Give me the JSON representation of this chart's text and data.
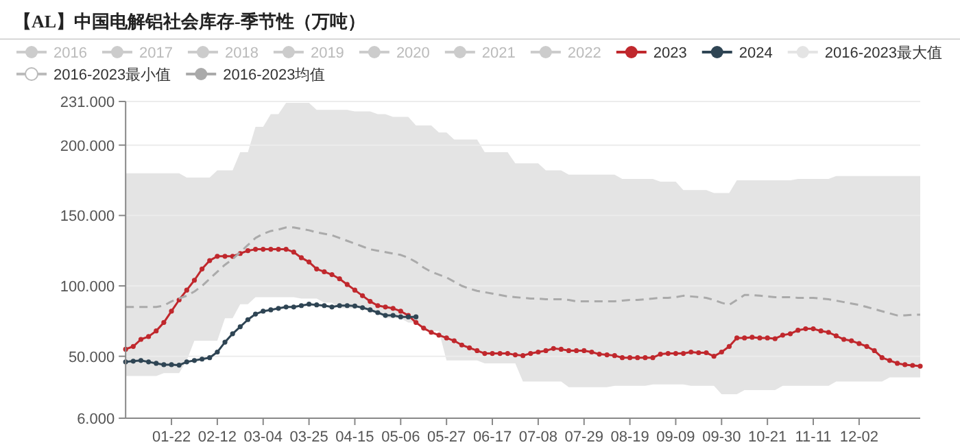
{
  "chart_data": {
    "type": "line",
    "title": "【AL】中国电解铝社会库存-季节性（万吨）",
    "categories": [
      null,
      null,
      null,
      null,
      null,
      null,
      "01-22",
      null,
      null,
      null,
      null,
      null,
      "02-12",
      null,
      null,
      null,
      null,
      null,
      "03-04",
      null,
      null,
      null,
      null,
      null,
      "03-25",
      null,
      null,
      null,
      null,
      null,
      "04-15",
      null,
      null,
      null,
      null,
      null,
      "05-06",
      null,
      null,
      null,
      null,
      null,
      "05-27",
      null,
      null,
      null,
      null,
      null,
      "06-17",
      null,
      null,
      null,
      null,
      null,
      "07-08",
      null,
      null,
      null,
      null,
      null,
      "07-29",
      null,
      null,
      null,
      null,
      null,
      "08-19",
      null,
      null,
      null,
      null,
      null,
      "09-09",
      null,
      null,
      null,
      null,
      null,
      "09-30",
      null,
      null,
      null,
      null,
      null,
      "10-21",
      null,
      null,
      null,
      null,
      null,
      "11-11",
      null,
      null,
      null,
      null,
      null,
      "12-02",
      null,
      null,
      null,
      null,
      null,
      null,
      null,
      null
    ],
    "ylim": [
      6,
      231
    ],
    "yticks": [
      {
        "value": 6,
        "label": "6.000"
      },
      {
        "value": 50,
        "label": "50.000"
      },
      {
        "value": 100,
        "label": "100.000"
      },
      {
        "value": 150,
        "label": "150.000"
      },
      {
        "value": 200,
        "label": "200.000"
      },
      {
        "value": 231,
        "label": "231.000"
      }
    ],
    "grid": "y",
    "legend": "top",
    "marker": "circle",
    "series": [
      {
        "name": "2016",
        "color": "#cccccc",
        "values": [
          null,
          null,
          null,
          null,
          null,
          null,
          null,
          null,
          null,
          null,
          null,
          null,
          null,
          null,
          null,
          null,
          null,
          null,
          null,
          null,
          null,
          null,
          null,
          null,
          null,
          null,
          null,
          null,
          null,
          null,
          null,
          null,
          null,
          null,
          null,
          null,
          null,
          null,
          null,
          null,
          null,
          null,
          null,
          null,
          null,
          null,
          null,
          null,
          null,
          null,
          null,
          null,
          null,
          null,
          null,
          null,
          null,
          null,
          null,
          null,
          null,
          null,
          null,
          null,
          null,
          null,
          null,
          null,
          null,
          null,
          null,
          null,
          null,
          null,
          null,
          null,
          null,
          null,
          null,
          null,
          null,
          null,
          null,
          null,
          null,
          null,
          null,
          null,
          null,
          null,
          null,
          null,
          null,
          null,
          null,
          null,
          null,
          null,
          null,
          null,
          null,
          null,
          null,
          null,
          null
        ]
      },
      {
        "name": "2017",
        "color": "#cccccc",
        "values": [
          null,
          null,
          null,
          null,
          null,
          null,
          null,
          null,
          null,
          null,
          null,
          null,
          null,
          null,
          null,
          null,
          null,
          null,
          null,
          null,
          null,
          null,
          null,
          null,
          null,
          null,
          null,
          null,
          null,
          null,
          null,
          null,
          null,
          null,
          null,
          null,
          null,
          null,
          null,
          null,
          null,
          null,
          null,
          null,
          null,
          null,
          null,
          null,
          null,
          null,
          null,
          null,
          null,
          null,
          null,
          null,
          null,
          null,
          null,
          null,
          null,
          null,
          null,
          null,
          null,
          null,
          null,
          null,
          null,
          null,
          null,
          null,
          null,
          null,
          null,
          null,
          null,
          null,
          null,
          null,
          null,
          null,
          null,
          null,
          null,
          null,
          null,
          null,
          null,
          null,
          null,
          null,
          null,
          null,
          null,
          null,
          null,
          null,
          null,
          null,
          null,
          null,
          null,
          null,
          null
        ]
      },
      {
        "name": "2018",
        "color": "#cccccc",
        "values": [
          null,
          null,
          null,
          null,
          null,
          null,
          null,
          null,
          null,
          null,
          null,
          null,
          null,
          null,
          null,
          null,
          null,
          null,
          null,
          null,
          null,
          null,
          null,
          null,
          null,
          null,
          null,
          null,
          null,
          null,
          null,
          null,
          null,
          null,
          null,
          null,
          null,
          null,
          null,
          null,
          null,
          null,
          null,
          null,
          null,
          null,
          null,
          null,
          null,
          null,
          null,
          null,
          null,
          null,
          null,
          null,
          null,
          null,
          null,
          null,
          null,
          null,
          null,
          null,
          null,
          null,
          null,
          null,
          null,
          null,
          null,
          null,
          null,
          null,
          null,
          null,
          null,
          null,
          null,
          null,
          null,
          null,
          null,
          null,
          null,
          null,
          null,
          null,
          null,
          null,
          null,
          null,
          null,
          null,
          null,
          null,
          null,
          null,
          null,
          null,
          null,
          null,
          null,
          null,
          null
        ]
      },
      {
        "name": "2019",
        "color": "#cccccc",
        "values": [
          null,
          null,
          null,
          null,
          null,
          null,
          null,
          null,
          null,
          null,
          null,
          null,
          null,
          null,
          null,
          null,
          null,
          null,
          null,
          null,
          null,
          null,
          null,
          null,
          null,
          null,
          null,
          null,
          null,
          null,
          null,
          null,
          null,
          null,
          null,
          null,
          null,
          null,
          null,
          null,
          null,
          null,
          null,
          null,
          null,
          null,
          null,
          null,
          null,
          null,
          null,
          null,
          null,
          null,
          null,
          null,
          null,
          null,
          null,
          null,
          null,
          null,
          null,
          null,
          null,
          null,
          null,
          null,
          null,
          null,
          null,
          null,
          null,
          null,
          null,
          null,
          null,
          null,
          null,
          null,
          null,
          null,
          null,
          null,
          null,
          null,
          null,
          null,
          null,
          null,
          null,
          null,
          null,
          null,
          null,
          null,
          null,
          null,
          null,
          null,
          null,
          null,
          null,
          null,
          null
        ]
      },
      {
        "name": "2020",
        "color": "#cccccc",
        "values": [
          null,
          null,
          null,
          null,
          null,
          null,
          null,
          null,
          null,
          null,
          null,
          null,
          null,
          null,
          null,
          null,
          null,
          null,
          null,
          null,
          null,
          null,
          null,
          null,
          null,
          null,
          null,
          null,
          null,
          null,
          null,
          null,
          null,
          null,
          null,
          null,
          null,
          null,
          null,
          null,
          null,
          null,
          null,
          null,
          null,
          null,
          null,
          null,
          null,
          null,
          null,
          null,
          null,
          null,
          null,
          null,
          null,
          null,
          null,
          null,
          null,
          null,
          null,
          null,
          null,
          null,
          null,
          null,
          null,
          null,
          null,
          null,
          null,
          null,
          null,
          null,
          null,
          null,
          null,
          null,
          null,
          null,
          null,
          null,
          null,
          null,
          null,
          null,
          null,
          null,
          null,
          null,
          null,
          null,
          null,
          null,
          null,
          null,
          null,
          null,
          null,
          null,
          null,
          null,
          null
        ]
      },
      {
        "name": "2021",
        "color": "#cccccc",
        "values": [
          null,
          null,
          null,
          null,
          null,
          null,
          null,
          null,
          null,
          null,
          null,
          null,
          null,
          null,
          null,
          null,
          null,
          null,
          null,
          null,
          null,
          null,
          null,
          null,
          null,
          null,
          null,
          null,
          null,
          null,
          null,
          null,
          null,
          null,
          null,
          null,
          null,
          null,
          null,
          null,
          null,
          null,
          null,
          null,
          null,
          null,
          null,
          null,
          null,
          null,
          null,
          null,
          null,
          null,
          null,
          null,
          null,
          null,
          null,
          null,
          null,
          null,
          null,
          null,
          null,
          null,
          null,
          null,
          null,
          null,
          null,
          null,
          null,
          null,
          null,
          null,
          null,
          null,
          null,
          null,
          null,
          null,
          null,
          null,
          null,
          null,
          null,
          null,
          null,
          null,
          null,
          null,
          null,
          null,
          null,
          null,
          null,
          null,
          null,
          null,
          null,
          null,
          null,
          null,
          null
        ]
      },
      {
        "name": "2022",
        "color": "#cccccc",
        "values": [
          null,
          null,
          null,
          null,
          null,
          null,
          null,
          null,
          null,
          null,
          null,
          null,
          null,
          null,
          null,
          null,
          null,
          null,
          null,
          null,
          null,
          null,
          null,
          null,
          null,
          null,
          null,
          null,
          null,
          null,
          null,
          null,
          null,
          null,
          null,
          null,
          null,
          null,
          null,
          null,
          null,
          null,
          null,
          null,
          null,
          null,
          null,
          null,
          null,
          null,
          null,
          null,
          null,
          null,
          null,
          null,
          null,
          null,
          null,
          null,
          null,
          null,
          null,
          null,
          null,
          null,
          null,
          null,
          null,
          null,
          null,
          null,
          null,
          null,
          null,
          null,
          null,
          null,
          null,
          null,
          null,
          null,
          null,
          null,
          null,
          null,
          null,
          null,
          null,
          null,
          null,
          null,
          null,
          null,
          null,
          null,
          null,
          null,
          null,
          null,
          null,
          null,
          null,
          null,
          null
        ]
      },
      {
        "name": "2023",
        "color": "#c0282d",
        "values": [
          55,
          57,
          62,
          64,
          68,
          74,
          82,
          90,
          97,
          104,
          112,
          118,
          121,
          121,
          121,
          123,
          125,
          126,
          126,
          126,
          126,
          126,
          124,
          120,
          117,
          112,
          110,
          108,
          105,
          101,
          97,
          93,
          89,
          86,
          85,
          84,
          82,
          79,
          74,
          70,
          67,
          65,
          63,
          61,
          58,
          56,
          54,
          52,
          52,
          52,
          52,
          51,
          50.5,
          52,
          53,
          54,
          55.5,
          55,
          54,
          54,
          54,
          53,
          51.5,
          51,
          50.5,
          49,
          49,
          49,
          49,
          49,
          51.5,
          52,
          52,
          52,
          53,
          52.5,
          52.5,
          50,
          53,
          57,
          63,
          63,
          63.5,
          63,
          63,
          62.5,
          65,
          66,
          68.5,
          69.5,
          69.5,
          68,
          67,
          64.5,
          62,
          61,
          59,
          57,
          54,
          49,
          47,
          45,
          44,
          43.5,
          43
        ]
      },
      {
        "name": "2024",
        "color": "#2f4554",
        "values": [
          46,
          46.5,
          47,
          46,
          45,
          44,
          44,
          43.7,
          46,
          47,
          48,
          49,
          53,
          60,
          66,
          71,
          76,
          80,
          82,
          83,
          84,
          85,
          85,
          86,
          87,
          86.5,
          86,
          85,
          86,
          86,
          85.7,
          84.5,
          83,
          81,
          79,
          79,
          78,
          78,
          78,
          null,
          null,
          null,
          null,
          null,
          null,
          null,
          null,
          null,
          null,
          null,
          null,
          null,
          null,
          null,
          null,
          null,
          null,
          null,
          null,
          null,
          null,
          null,
          null,
          null,
          null,
          null,
          null,
          null,
          null,
          null,
          null,
          null,
          null,
          null,
          null,
          null,
          null,
          null,
          null,
          null,
          null,
          null,
          null,
          null,
          null,
          null,
          null,
          null,
          null,
          null,
          null,
          null,
          null,
          null,
          null,
          null,
          null,
          null,
          null,
          null,
          null,
          null,
          null,
          null,
          null
        ]
      },
      {
        "name": "2016-2023最大值",
        "type": "area",
        "color": "#e4e4e4",
        "marker": "none",
        "values": [
          180,
          180,
          180,
          180,
          180,
          180,
          180,
          180,
          177,
          177,
          177,
          177,
          182,
          182,
          182,
          195,
          195,
          213,
          213,
          222,
          222,
          230,
          230,
          230,
          230,
          225,
          225,
          225,
          225,
          225,
          224,
          224,
          224,
          222,
          222,
          220,
          220,
          220,
          214,
          214,
          214,
          209,
          209,
          204,
          204,
          204,
          204,
          195,
          195,
          195,
          195,
          187,
          187,
          187,
          187,
          182,
          182,
          182,
          179,
          179,
          179,
          179,
          179,
          179,
          179,
          176,
          176,
          176,
          176,
          176,
          174,
          174,
          174,
          168,
          168,
          168,
          168,
          166,
          166,
          166,
          175,
          175,
          175,
          175,
          175,
          175,
          175,
          175,
          176,
          176,
          176,
          176,
          176,
          178,
          178,
          178,
          178,
          178,
          178,
          178,
          178,
          178,
          178,
          178,
          178
        ]
      },
      {
        "name": "2016-2023最小值",
        "type": "area",
        "color": "#ffffff",
        "marker": "none",
        "values": [
          36,
          36,
          36,
          36,
          36,
          38,
          38,
          38,
          47,
          61,
          61,
          61,
          61,
          77,
          77,
          87,
          87,
          92,
          92,
          92,
          92,
          92,
          92,
          91,
          91,
          91,
          88,
          88,
          84,
          84,
          84,
          84,
          81,
          81,
          77,
          77,
          77,
          74,
          74,
          68,
          68,
          68,
          47,
          47,
          47,
          47,
          47,
          45,
          45,
          45,
          45,
          45,
          32,
          32,
          32,
          32,
          32,
          32,
          28,
          28,
          28,
          28,
          28,
          28,
          29,
          29,
          29,
          29,
          29,
          30,
          30,
          30,
          30,
          30,
          29,
          29,
          29,
          29,
          23,
          23,
          23,
          26,
          26,
          26,
          26,
          26,
          29,
          29,
          29,
          29,
          29,
          29,
          29,
          32,
          32,
          32,
          32,
          32,
          32,
          32,
          35,
          35,
          35,
          35,
          35
        ]
      },
      {
        "name": "2016-2023均值",
        "color": "#aaaaaa",
        "marker": "none",
        "line_style": "dashed",
        "values": [
          85,
          85,
          85,
          85,
          85,
          86,
          89,
          91,
          93,
          96,
          100,
          105,
          110,
          115,
          119,
          124,
          129,
          134,
          137,
          139,
          140,
          141.5,
          141.5,
          140.5,
          139.5,
          138,
          137,
          136,
          134,
          132,
          130,
          128,
          126,
          125,
          124,
          123,
          122,
          120,
          117,
          113,
          110,
          108,
          106,
          103,
          100,
          98,
          96.5,
          95.5,
          94.5,
          93.5,
          92.5,
          92,
          91.5,
          91,
          91,
          90.5,
          90.5,
          90.5,
          90,
          89,
          89,
          89,
          89,
          89,
          89,
          89.5,
          90,
          90,
          90.5,
          91,
          91.5,
          91.5,
          92,
          93,
          92.5,
          92,
          91.5,
          90,
          88,
          86.5,
          90,
          93.5,
          93.5,
          93,
          92.5,
          92,
          92,
          92,
          91.5,
          91.5,
          91.5,
          91,
          90.5,
          89.5,
          88.5,
          87.5,
          86.5,
          85,
          83.5,
          82,
          80.5,
          79,
          79,
          79.5,
          79.5
        ]
      }
    ]
  }
}
